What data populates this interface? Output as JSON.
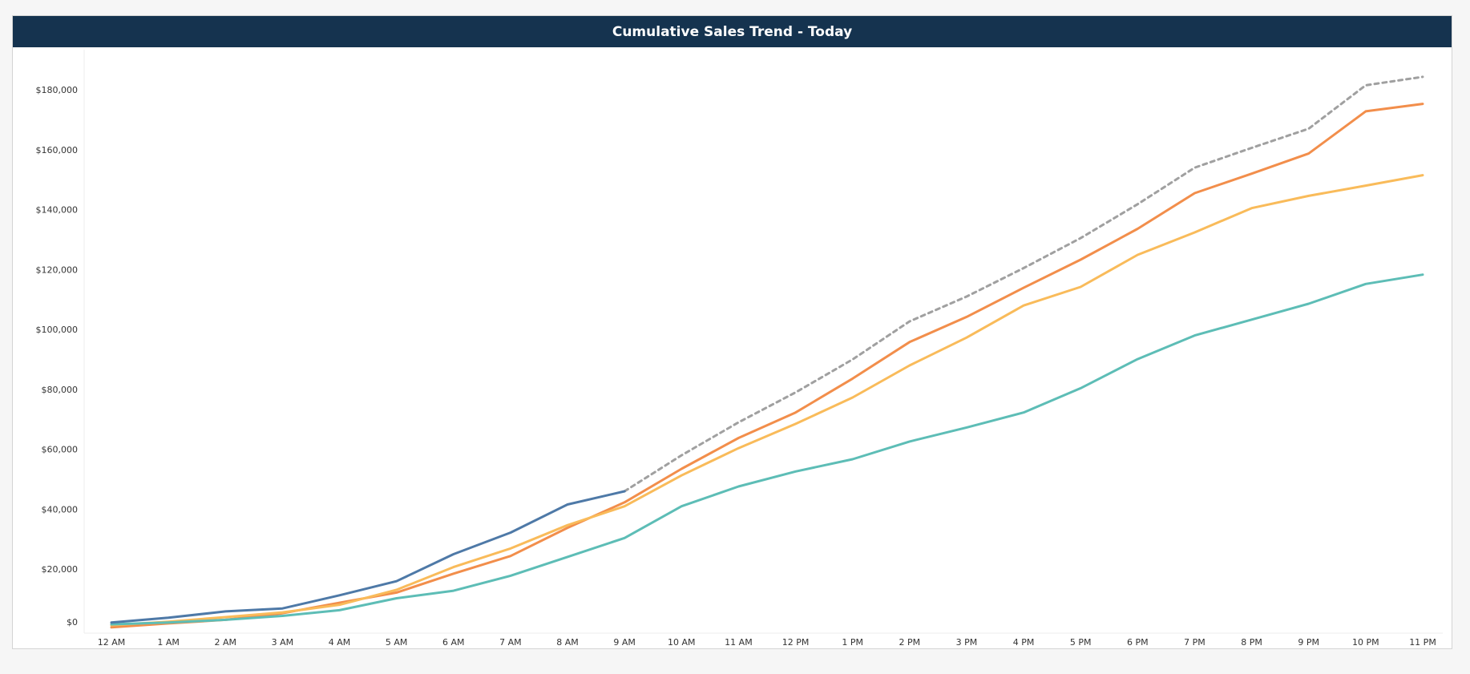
{
  "chart_data": {
    "type": "line",
    "title": "Cumulative Sales Trend - Today",
    "xlabel": "",
    "ylabel": "",
    "categories": [
      "12 AM",
      "1 AM",
      "2 AM",
      "3 AM",
      "4 AM",
      "5 AM",
      "6 AM",
      "7 AM",
      "8 AM",
      "9 AM",
      "10 AM",
      "11 AM",
      "12 PM",
      "1 PM",
      "2 PM",
      "3 PM",
      "4 PM",
      "5 PM",
      "6 PM",
      "7 PM",
      "8 PM",
      "9 PM",
      "10 PM",
      "11 PM"
    ],
    "ylim": [
      0,
      190000
    ],
    "yticks": [
      0,
      20000,
      40000,
      60000,
      80000,
      100000,
      120000,
      140000,
      160000,
      180000
    ],
    "ytick_labels": [
      "$0",
      "$20,000",
      "$40,000",
      "$60,000",
      "$80,000",
      "$100,000",
      "$120,000",
      "$140,000",
      "$160,000",
      "$180,000"
    ],
    "grid": false,
    "legend": "none",
    "series": [
      {
        "color": "#f28e4b",
        "dash": false,
        "values": [
          600,
          1900,
          3100,
          5300,
          8800,
          12200,
          18500,
          24400,
          33800,
          42300,
          53500,
          63800,
          72300,
          83600,
          95800,
          104200,
          113900,
          123300,
          133600,
          145500,
          152000,
          158700,
          172800,
          175300
        ]
      },
      {
        "color": "#f9bb5a",
        "dash": false,
        "values": [
          1300,
          2500,
          4000,
          5600,
          8100,
          13100,
          20700,
          26900,
          34700,
          41000,
          51300,
          60400,
          68500,
          77300,
          88000,
          97300,
          108000,
          114200,
          124900,
          132400,
          140500,
          144600,
          148000,
          151500
        ]
      },
      {
        "color": "#5dbdb6",
        "dash": false,
        "values": [
          1600,
          2200,
          3100,
          4400,
          6300,
          10300,
          12800,
          17800,
          24100,
          30400,
          41000,
          47600,
          52600,
          56700,
          62600,
          67300,
          72300,
          80400,
          90100,
          98000,
          103300,
          108600,
          115200,
          118300
        ]
      },
      {
        "color": "#a0a0a0",
        "dash": true,
        "values": [
          null,
          null,
          null,
          null,
          null,
          null,
          null,
          null,
          null,
          46000,
          58000,
          69000,
          79000,
          90000,
          102700,
          111000,
          120500,
          130500,
          141800,
          154000,
          160600,
          167000,
          181500,
          184300
        ]
      },
      {
        "color": "#4e79a7",
        "dash": false,
        "values": [
          2200,
          3800,
          5900,
          6900,
          11300,
          16000,
          25000,
          32200,
          41600,
          46000,
          null,
          null,
          null,
          null,
          null,
          null,
          null,
          null,
          null,
          null,
          null,
          null,
          null,
          null
        ]
      }
    ]
  }
}
